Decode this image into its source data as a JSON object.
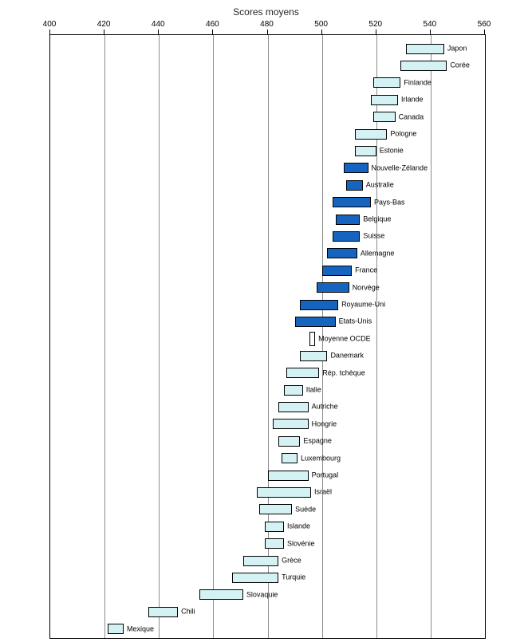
{
  "chart_data": {
    "type": "bar",
    "subtype": "horizontal-range-bars",
    "title": "Scores moyens",
    "xlabel": "Scores moyens",
    "ylabel": "",
    "x_min": 400,
    "x_max": 560,
    "x_ticks": [
      400,
      420,
      440,
      460,
      480,
      500,
      520,
      540,
      560
    ],
    "x_axis_position": "top",
    "grid": true,
    "legend": null,
    "colors": {
      "country_fill": "#d4f1f4",
      "highlight_fill": "#1565c0",
      "average_fill": "#ffffff",
      "bar_border": "#000000",
      "gridline": "#8c8c8c",
      "text": "#000000"
    },
    "series": [
      {
        "label": "Japon",
        "low": 531,
        "high": 545,
        "style": "country"
      },
      {
        "label": "Corée",
        "low": 529,
        "high": 546,
        "style": "country"
      },
      {
        "label": "Finlande",
        "low": 519,
        "high": 529,
        "style": "country"
      },
      {
        "label": "Irlande",
        "low": 518,
        "high": 528,
        "style": "country"
      },
      {
        "label": "Canada",
        "low": 519,
        "high": 527,
        "style": "country"
      },
      {
        "label": "Pologne",
        "low": 512,
        "high": 524,
        "style": "country"
      },
      {
        "label": "Estonie",
        "low": 512,
        "high": 520,
        "style": "country"
      },
      {
        "label": "Nouvelle-Zélande",
        "low": 508,
        "high": 517,
        "style": "highlight"
      },
      {
        "label": "Australie",
        "low": 509,
        "high": 515,
        "style": "highlight"
      },
      {
        "label": "Pays-Bas",
        "low": 504,
        "high": 518,
        "style": "highlight"
      },
      {
        "label": "Belgique",
        "low": 505,
        "high": 514,
        "style": "highlight"
      },
      {
        "label": "Suisse",
        "low": 504,
        "high": 514,
        "style": "highlight"
      },
      {
        "label": "Allemagne",
        "low": 502,
        "high": 513,
        "style": "highlight"
      },
      {
        "label": "France",
        "low": 500,
        "high": 511,
        "style": "highlight"
      },
      {
        "label": "Norvège",
        "low": 498,
        "high": 510,
        "style": "highlight"
      },
      {
        "label": "Royaume-Uni",
        "low": 492,
        "high": 506,
        "style": "highlight"
      },
      {
        "label": "Etats-Unis",
        "low": 490,
        "high": 505,
        "style": "highlight"
      },
      {
        "label": "Moyenne OCDE",
        "low": 495.5,
        "high": 497.5,
        "style": "average"
      },
      {
        "label": "Danemark",
        "low": 492,
        "high": 502,
        "style": "country"
      },
      {
        "label": "Rép. tchèque",
        "low": 487,
        "high": 499,
        "style": "country"
      },
      {
        "label": "Italie",
        "low": 486,
        "high": 493,
        "style": "country"
      },
      {
        "label": "Autriche",
        "low": 484,
        "high": 495,
        "style": "country"
      },
      {
        "label": "Hongrie",
        "low": 482,
        "high": 495,
        "style": "country"
      },
      {
        "label": "Espagne",
        "low": 484,
        "high": 492,
        "style": "country"
      },
      {
        "label": "Luxembourg",
        "low": 485,
        "high": 491,
        "style": "country"
      },
      {
        "label": "Portugal",
        "low": 480,
        "high": 495,
        "style": "country"
      },
      {
        "label": "Israël",
        "low": 476,
        "high": 496,
        "style": "country"
      },
      {
        "label": "Suède",
        "low": 477,
        "high": 489,
        "style": "country"
      },
      {
        "label": "Islande",
        "low": 479,
        "high": 486,
        "style": "country"
      },
      {
        "label": "Slovénie",
        "low": 479,
        "high": 486,
        "style": "country"
      },
      {
        "label": "Grèce",
        "low": 471,
        "high": 484,
        "style": "country"
      },
      {
        "label": "Turquie",
        "low": 467,
        "high": 484,
        "style": "country"
      },
      {
        "label": "Slovaquie",
        "low": 455,
        "high": 471,
        "style": "country"
      },
      {
        "label": "Chili",
        "low": 436,
        "high": 447,
        "style": "country"
      },
      {
        "label": "Mexique",
        "low": 421,
        "high": 427,
        "style": "country"
      }
    ]
  }
}
